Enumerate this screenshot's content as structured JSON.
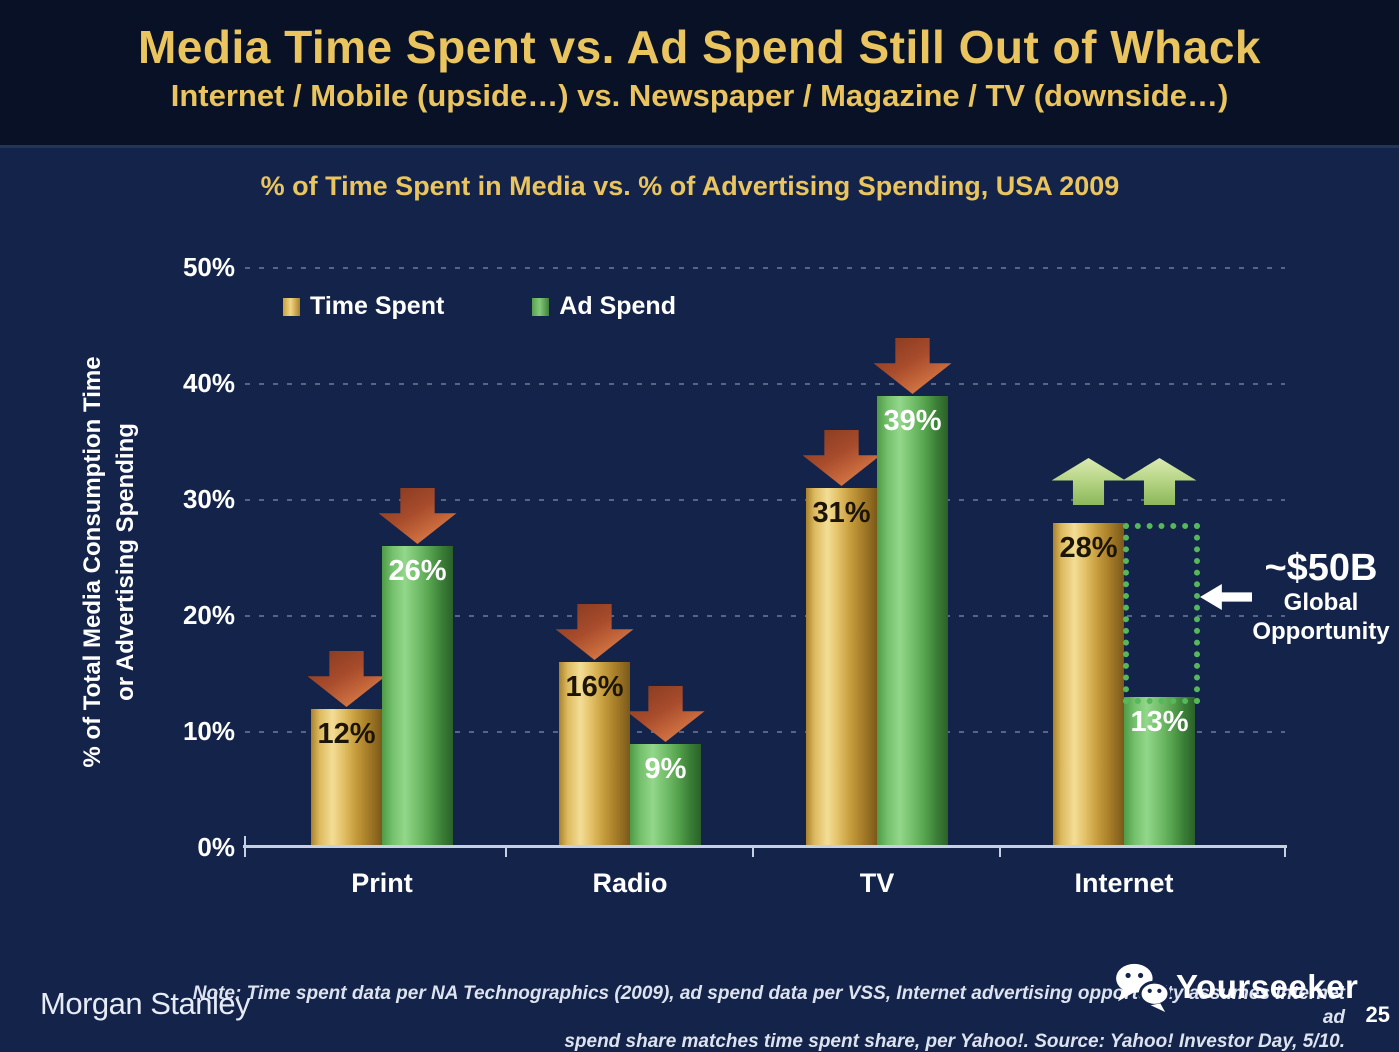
{
  "slide": {
    "title": "Media Time Spent vs. Ad Spend Still Out of Whack",
    "subtitle": "Internet / Mobile (upside…) vs. Newspaper / Magazine / TV (downside…)"
  },
  "chart_data": {
    "type": "bar",
    "title": "% of Time Spent in Media vs. % of Advertising Spending, USA 2009",
    "categories": [
      "Print",
      "Radio",
      "TV",
      "Internet"
    ],
    "series": [
      {
        "name": "Time Spent",
        "values": [
          12,
          16,
          31,
          28
        ],
        "color": "#d9ac3f",
        "label_color": "#1c1505"
      },
      {
        "name": "Ad Spend",
        "values": [
          26,
          9,
          39,
          13
        ],
        "color": "#57a653",
        "label_color": "#ffffff"
      }
    ],
    "value_suffix": "%",
    "ylabel_line1": "% of Total Media Consumption Time",
    "ylabel_line2": "or Advertising Spending",
    "y_tick_labels": [
      "0%",
      "10%",
      "20%",
      "30%",
      "40%",
      "50%"
    ],
    "ylim": [
      0,
      50
    ],
    "grid": "dashed-horizontal",
    "legend_position": "top-left-inside",
    "trend_arrows": [
      [
        "down",
        "down"
      ],
      [
        "down",
        "down"
      ],
      [
        "down",
        "down"
      ],
      [
        "up",
        "up"
      ]
    ],
    "arrow_colors": {
      "down": "#c4603a",
      "up": "#a9cc75"
    },
    "opportunity_gap": {
      "category": "Internet",
      "from_pct": 13,
      "to_pct": 28,
      "style": "green-dotted-outline"
    },
    "annotation": {
      "value": "~$50B",
      "line1": "Global",
      "line2": "Opportunity"
    }
  },
  "footer": {
    "brand": "Morgan Stanley",
    "note_line1": "Note: Time spent data per NA Technographics (2009), ad spend data per VSS, Internet advertising opportunity assumes Internet ad",
    "note_line2": "spend share matches time spent share, per Yahoo!. Source: Yahoo! Investor Day, 5/10.",
    "page_number": "25",
    "watermark_text": "Yourseeker"
  }
}
